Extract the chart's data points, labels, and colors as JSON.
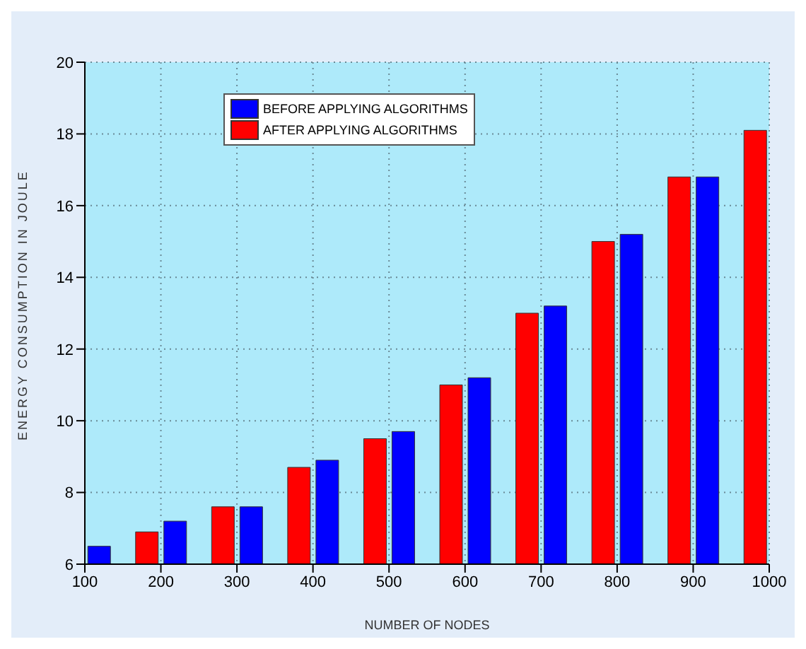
{
  "chart_data": {
    "type": "bar",
    "xlabel": "NUMBER OF NODES",
    "ylabel": "ENERGY CONSUMPTION IN JOULE",
    "x": [
      100,
      200,
      300,
      400,
      500,
      600,
      700,
      800,
      900,
      1000
    ],
    "series": [
      {
        "name": "AFTER APPLYING ALGORITHMS",
        "color": "#ff0000",
        "values": [
          null,
          6.9,
          7.6,
          8.7,
          9.5,
          11.0,
          13.0,
          15.0,
          16.8,
          18.1
        ]
      },
      {
        "name": "BEFORE APPLYING ALGORITHMS",
        "color": "#0000ff",
        "values": [
          6.5,
          7.2,
          7.6,
          8.9,
          9.7,
          11.2,
          13.2,
          15.2,
          16.8,
          null
        ]
      }
    ],
    "xlim": [
      100,
      1000
    ],
    "xticks": [
      100,
      200,
      300,
      400,
      500,
      600,
      700,
      800,
      900,
      1000
    ],
    "ylim": [
      6,
      20
    ],
    "yticks": [
      6,
      8,
      10,
      12,
      14,
      16,
      18,
      20
    ],
    "grid": true,
    "legend": "top left"
  }
}
